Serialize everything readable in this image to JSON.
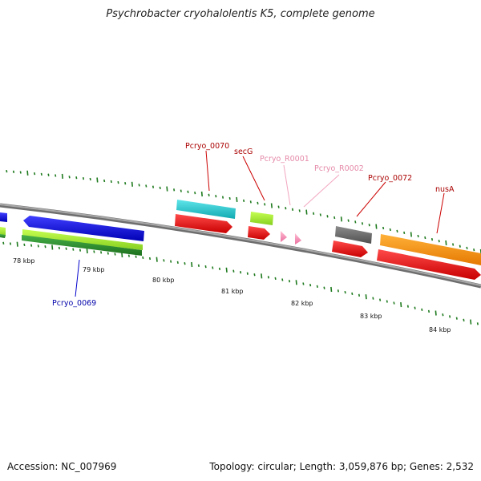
{
  "title": "Psychrobacter cryohalolentis K5, complete genome",
  "footer": {
    "accession": "Accession: NC_007969",
    "summary": "Topology: circular; Length: 3,059,876 bp; Genes: 2,532"
  },
  "colors": {
    "backbone": "#8a8a8a",
    "tick": "#1e7a1e",
    "cds": "#ee0000",
    "label_dark_red": "#aa0000",
    "label_pink": "#e58aa9",
    "label_blue": "#0000aa"
  },
  "kbp_labels": [
    "78 kbp",
    "79 kbp",
    "80 kbp",
    "81 kbp",
    "82 kbp",
    "83 kbp",
    "84 kbp"
  ],
  "gene_labels": [
    {
      "name": "Pcryo_0070",
      "color": "#aa0000"
    },
    {
      "name": "secG",
      "color": "#aa0000"
    },
    {
      "name": "Pcryo_R0001",
      "color": "#e58aa9"
    },
    {
      "name": "Pcryo_R0002",
      "color": "#e58aa9"
    },
    {
      "name": "Pcryo_0072",
      "color": "#aa0000"
    },
    {
      "name": "nusA",
      "color": "#aa0000"
    },
    {
      "name": "Pcryo_0069",
      "color": "#0000aa"
    }
  ]
}
